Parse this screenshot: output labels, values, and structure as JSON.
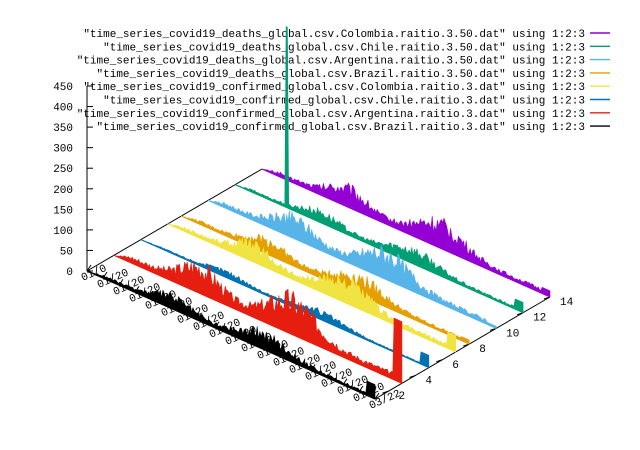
{
  "chart_data": {
    "type": "area",
    "view": "3d-fence",
    "zlim": [
      0,
      450
    ],
    "z_ticks": [
      "450",
      "400",
      "350",
      "300",
      "250",
      "200",
      "150",
      "100",
      "50",
      "0"
    ],
    "y_ticks": [
      "2",
      "4",
      "6",
      "8",
      "10",
      "12",
      "14"
    ],
    "ylim": [
      1,
      14
    ],
    "x_tick_first": "01/0",
    "x_tick_label": "01/20",
    "x_tick_last": "03/22",
    "x_tick_count": 19,
    "series": [
      {
        "name": "\"time_series_covid19_deaths_global.csv.Colombia.raitio.3.50.dat\" using 1:2:3",
        "color": "#9400d3",
        "y": 14,
        "peak_value": 60,
        "spike_value": 0,
        "spike_pos": 0,
        "end_value": 15
      },
      {
        "name": "\"time_series_covid19_deaths_global.csv.Chile.raitio.3.50.dat\" using 1:2:3",
        "color": "#009e73",
        "y": 12,
        "peak_value": 35,
        "spike_value": 440,
        "spike_pos": 0.18,
        "end_value": 25
      },
      {
        "name": "\"time_series_covid19_deaths_global.csv.Argentina.raitio.3.50.dat\" using 1:2:3",
        "color": "#56b4e9",
        "y": 10,
        "peak_value": 65,
        "spike_value": 0,
        "spike_pos": 0,
        "end_value": 5
      },
      {
        "name": "\"time_series_covid19_deaths_global.csv.Brazil.raitio.3.50.dat\" using 1:2:3",
        "color": "#e69f00",
        "y": 8,
        "peak_value": 45,
        "spike_value": 0,
        "spike_pos": 0,
        "end_value": 10
      },
      {
        "name": "\"time_series_covid19_confirmed_global.csv.Colombia.raitio.3.dat\" using 1:2:3",
        "color": "#f0e442",
        "y": 7,
        "peak_value": 55,
        "spike_value": 0,
        "spike_pos": 0,
        "end_value": 40
      },
      {
        "name": "\"time_series_covid19_confirmed_global.csv.Chile.raitio.3.dat\" using 1:2:3",
        "color": "#0072b2",
        "y": 5,
        "peak_value": 20,
        "spike_value": 0,
        "spike_pos": 0,
        "end_value": 30
      },
      {
        "name": "\"time_series_covid19_confirmed_global.csv.Argentina.raitio.3.dat\" using 1:2:3",
        "color": "#e51e10",
        "y": 3,
        "peak_value": 85,
        "spike_value": 0,
        "spike_pos": 0,
        "end_value": 150
      },
      {
        "name": "\"time_series_covid19_confirmed_global.csv.Brazil.raitio.3.dat\" using 1:2:3",
        "color": "#000000",
        "y": 1,
        "peak_value": 40,
        "spike_value": 0,
        "spike_pos": 0,
        "end_value": 35
      }
    ]
  }
}
